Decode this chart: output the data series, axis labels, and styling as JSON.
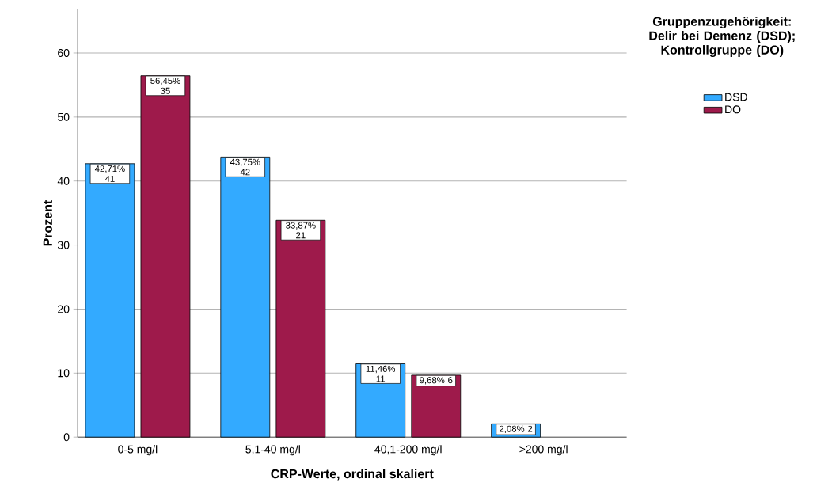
{
  "chart_data": {
    "type": "bar",
    "xlabel": "CRP-Werte, ordinal skaliert",
    "ylabel": "Prozent",
    "legend_title": "Gruppenzugehörigkeit: Delir bei Demenz (DSD); Kontrollgruppe (DO)",
    "categories": [
      "0-5 mg/l",
      "5,1-40  mg/l",
      "40,1-200 mg/l",
      ">200 mg/l"
    ],
    "series": [
      {
        "name": "DSD",
        "color": "#33aaff",
        "values": [
          42.71,
          43.75,
          11.46,
          2.08
        ],
        "value_labels": [
          "42,71% 41",
          "43,75% 42",
          "11,46% 11",
          "2,08% 2"
        ]
      },
      {
        "name": "DO",
        "color": "#9e1a4b",
        "values": [
          56.45,
          33.87,
          9.68,
          null
        ],
        "value_labels": [
          "56,45% 35",
          "33,87% 21",
          "9,68% 6",
          null
        ]
      }
    ],
    "ylim": [
      0,
      66.8
    ],
    "yticks": [
      0,
      10,
      20,
      30,
      40,
      50,
      60
    ],
    "grid": "y",
    "legend": "top right"
  }
}
